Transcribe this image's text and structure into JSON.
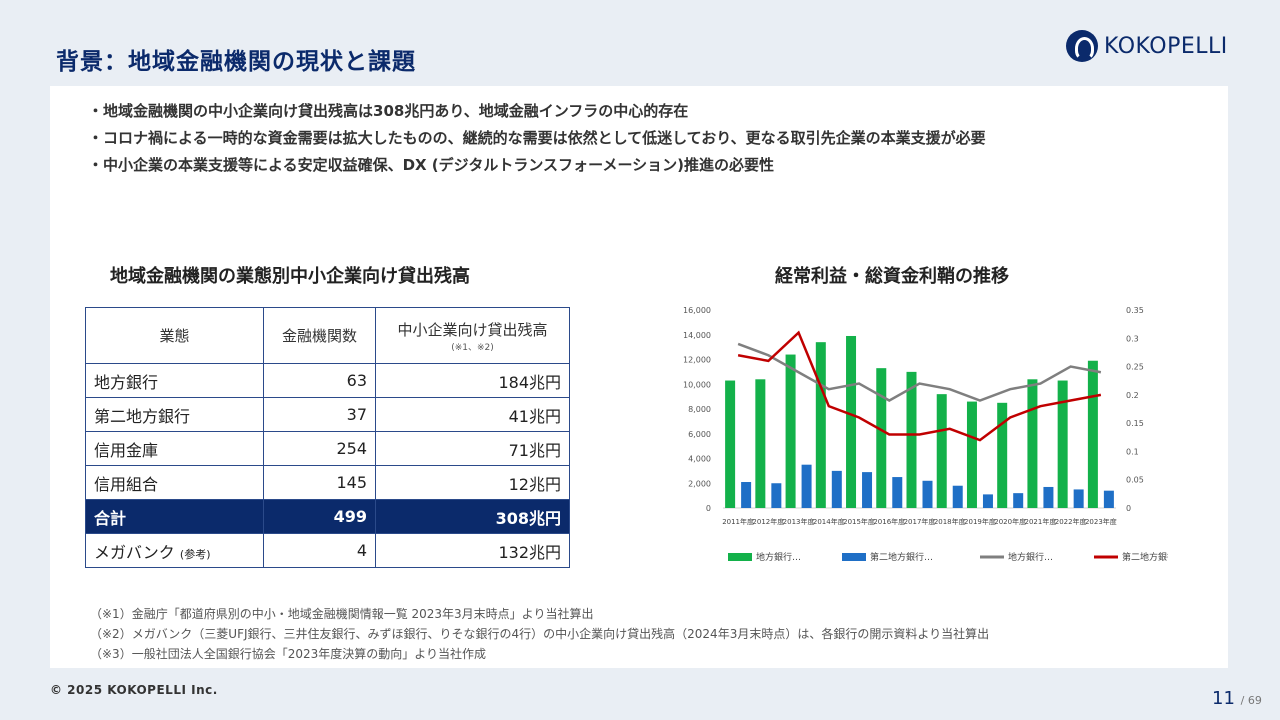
{
  "title": "背景：地域金融機関の現状と課題",
  "logo": {
    "text": "KOKOPELLI"
  },
  "bullets": [
    "地域金融機関の中小企業向け貸出残高は308兆円あり、地域金融インフラの中心的存在",
    "コロナ禍による一時的な資金需要は拡大したものの、継続的な需要は依然として低迷しており、更なる取引先企業の本業支援が必要",
    "中小企業の本業支援等による安定収益確保、DX (デジタルトランスフォーメーション)推進の必要性"
  ],
  "table": {
    "title": "地域金融機関の業態別中小企業向け貸出残高",
    "headers": [
      "業態",
      "金融機関数",
      "中小企業向け貸出残高"
    ],
    "header_note": "(※1、※2)",
    "rows": [
      {
        "type": "地方銀行",
        "count": "63",
        "balance": "184兆円"
      },
      {
        "type": "第二地方銀行",
        "count": "37",
        "balance": "41兆円"
      },
      {
        "type": "信用金庫",
        "count": "254",
        "balance": "71兆円"
      },
      {
        "type": "信用組合",
        "count": "145",
        "balance": "12兆円"
      }
    ],
    "total": {
      "type": "合計",
      "count": "499",
      "balance": "308兆円"
    },
    "reference": {
      "type": "メガバンク",
      "note": "(参考)",
      "count": "4",
      "balance": "132兆円"
    }
  },
  "chart_data": {
    "type": "bar",
    "title": "経常利益・総資金利鞘の推移",
    "categories": [
      "2011年度",
      "2012年度",
      "2013年度",
      "2014年度",
      "2015年度",
      "2016年度",
      "2017年度",
      "2018年度",
      "2019年度",
      "2020年度",
      "2021年度",
      "2022年度",
      "2023年度"
    ],
    "y_left": {
      "lim": [
        0,
        16000
      ],
      "ticks": [
        "0",
        "2,000",
        "4,000",
        "6,000",
        "8,000",
        "10,000",
        "12,000",
        "14,000",
        "16,000"
      ]
    },
    "y_right": {
      "lim": [
        0,
        0.35
      ],
      "ticks": [
        "0",
        "0.05",
        "0.1",
        "0.15",
        "0.2",
        "0.25",
        "0.3",
        "0.35"
      ]
    },
    "series": [
      {
        "name": "地方銀行…",
        "kind": "bar",
        "axis": "left",
        "color": "#13b14a",
        "values": [
          10300,
          10400,
          12400,
          13400,
          13900,
          11300,
          11000,
          9200,
          8600,
          8500,
          10400,
          10300,
          11900
        ]
      },
      {
        "name": "第二地方銀行…",
        "kind": "bar",
        "axis": "left",
        "color": "#1f6fc6",
        "values": [
          2100,
          2000,
          3500,
          3000,
          2900,
          2500,
          2200,
          1800,
          1100,
          1200,
          1700,
          1500,
          1400
        ]
      },
      {
        "name": "地方銀行…",
        "kind": "line",
        "axis": "right",
        "color": "#7f7f7f",
        "values": [
          0.29,
          0.27,
          0.24,
          0.21,
          0.22,
          0.19,
          0.22,
          0.21,
          0.19,
          0.21,
          0.22,
          0.25,
          0.24
        ]
      },
      {
        "name": "第二地方銀行…",
        "kind": "line",
        "axis": "right",
        "color": "#c00000",
        "values": [
          0.27,
          0.26,
          0.31,
          0.18,
          0.16,
          0.13,
          0.13,
          0.14,
          0.12,
          0.16,
          0.18,
          0.19,
          0.2
        ]
      }
    ],
    "legend": "bottom",
    "grid": false
  },
  "notes": [
    "（※1）金融庁「都道府県別の中小・地域金融機関情報一覧 2023年3月末時点」より当社算出",
    "（※2）メガバンク（三菱UFJ銀行、三井住友銀行、みずほ銀行、りそな銀行の4行）の中小企業向け貸出残高（2024年3月末時点）は、各銀行の開示資料より当社算出",
    "（※3）一般社団法人全国銀行協会「2023年度決算の動向」より当社作成"
  ],
  "footer": {
    "copyright": "© 2025 KOKOPELLI Inc.",
    "page": "11",
    "total": "/ 69"
  }
}
